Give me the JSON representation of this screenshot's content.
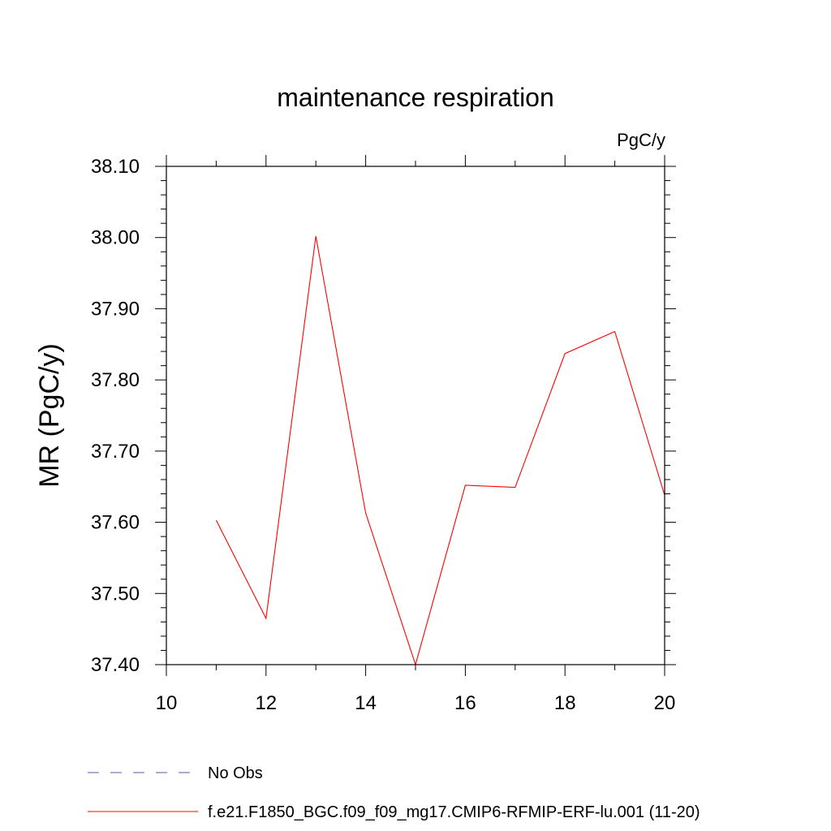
{
  "chart_data": {
    "type": "line",
    "title": "maintenance respiration",
    "units_label": "PgC/y",
    "ylabel": "MR  (PgC/y)",
    "xlabel": "",
    "xlim": [
      10,
      20
    ],
    "ylim": [
      37.4,
      38.1
    ],
    "x_ticks": [
      "10",
      "12",
      "14",
      "16",
      "18",
      "20"
    ],
    "y_ticks": [
      "37.40",
      "37.50",
      "37.60",
      "37.70",
      "37.80",
      "37.90",
      "38.00",
      "38.10"
    ],
    "grid": false,
    "legend_position": "bottom",
    "series": [
      {
        "name": "f.e21.F1850_BGC.f09_f09_mg17.CMIP6-RFMIP-ERF-lu.001 (11-20)",
        "color": "#ff0000",
        "style": "solid",
        "x": [
          11,
          12,
          13,
          14,
          15,
          16,
          17,
          18,
          19,
          20
        ],
        "values": [
          37.603,
          37.465,
          38.002,
          37.613,
          37.4,
          37.652,
          37.649,
          37.837,
          37.868,
          37.638
        ]
      }
    ],
    "legend": [
      {
        "name": "No Obs",
        "color": "#5a5aa8",
        "style": "dashed"
      },
      {
        "name": "f.e21.F1850_BGC.f09_f09_mg17.CMIP6-RFMIP-ERF-lu.001 (11-20)",
        "color": "#ff0000",
        "style": "solid"
      }
    ]
  }
}
